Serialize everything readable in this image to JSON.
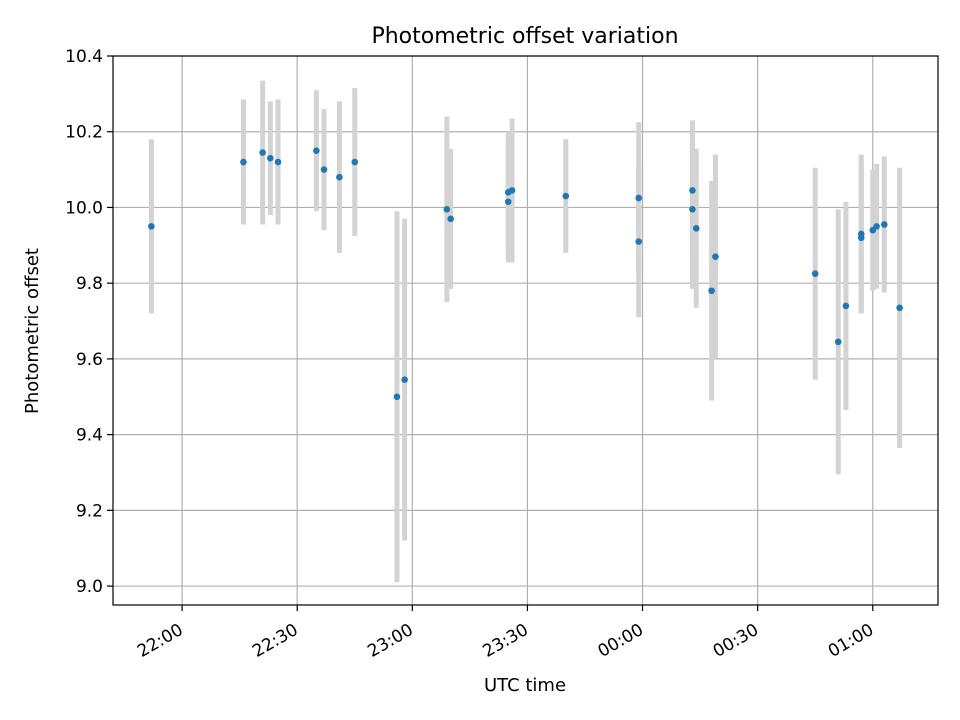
{
  "chart_data": {
    "type": "scatter",
    "title": "Photometric offset variation",
    "xlabel": "UTC time",
    "ylabel": "Photometric offset",
    "x_unit": "time",
    "xlim": [
      "21:42",
      "01:17"
    ],
    "ylim": [
      8.95,
      10.4
    ],
    "x_ticks": [
      "22:00",
      "22:30",
      "23:00",
      "23:30",
      "00:00",
      "00:30",
      "01:00"
    ],
    "y_ticks": [
      9.0,
      9.2,
      9.4,
      9.6,
      9.8,
      10.0,
      10.2,
      10.4
    ],
    "y_tick_labels": [
      "9.0",
      "9.2",
      "9.4",
      "9.6",
      "9.8",
      "10.0",
      "10.2",
      "10.4"
    ],
    "grid": true,
    "colors": {
      "point": "#1f77b4",
      "errorbar": "#d3d3d3",
      "grid": "#b0b0b0"
    },
    "series": [
      {
        "points": [
          {
            "x": "21:52",
            "y": 9.95,
            "yerr": 0.23
          },
          {
            "x": "22:16",
            "y": 10.12,
            "yerr": 0.165
          },
          {
            "x": "22:21",
            "y": 10.145,
            "yerr": 0.19
          },
          {
            "x": "22:23",
            "y": 10.13,
            "yerr": 0.15
          },
          {
            "x": "22:25",
            "y": 10.12,
            "yerr": 0.165
          },
          {
            "x": "22:35",
            "y": 10.15,
            "yerr": 0.16
          },
          {
            "x": "22:37",
            "y": 10.1,
            "yerr": 0.16
          },
          {
            "x": "22:41",
            "y": 10.08,
            "yerr": 0.2
          },
          {
            "x": "22:45",
            "y": 10.12,
            "yerr": 0.195
          },
          {
            "x": "22:56",
            "y": 9.5,
            "yerr": 0.49
          },
          {
            "x": "22:58",
            "y": 9.545,
            "yerr": 0.425
          },
          {
            "x": "23:09",
            "y": 9.995,
            "yerr": 0.245
          },
          {
            "x": "23:10",
            "y": 9.97,
            "yerr": 0.185
          },
          {
            "x": "23:25",
            "y": 10.04,
            "yerr": 0.16
          },
          {
            "x": "23:25",
            "y": 10.015,
            "yerr": 0.16
          },
          {
            "x": "23:26",
            "y": 10.045,
            "yerr": 0.19
          },
          {
            "x": "23:40",
            "y": 10.03,
            "yerr": 0.15
          },
          {
            "x": "23:59",
            "y": 10.025,
            "yerr": 0.2
          },
          {
            "x": "23:59",
            "y": 9.91,
            "yerr": 0.2
          },
          {
            "x": "00:13",
            "y": 10.045,
            "yerr": 0.185
          },
          {
            "x": "00:13",
            "y": 9.995,
            "yerr": 0.21
          },
          {
            "x": "00:14",
            "y": 9.945,
            "yerr": 0.21
          },
          {
            "x": "00:18",
            "y": 9.78,
            "yerr": 0.29
          },
          {
            "x": "00:19",
            "y": 9.87,
            "yerr": 0.27
          },
          {
            "x": "00:45",
            "y": 9.825,
            "yerr": 0.28
          },
          {
            "x": "00:51",
            "y": 9.645,
            "yerr": 0.35
          },
          {
            "x": "00:53",
            "y": 9.74,
            "yerr": 0.275
          },
          {
            "x": "00:57",
            "y": 9.92,
            "yerr": 0.2
          },
          {
            "x": "00:57",
            "y": 9.93,
            "yerr": 0.21
          },
          {
            "x": "01:00",
            "y": 9.94,
            "yerr": 0.16
          },
          {
            "x": "01:01",
            "y": 9.95,
            "yerr": 0.165
          },
          {
            "x": "01:03",
            "y": 9.955,
            "yerr": 0.18
          },
          {
            "x": "01:07",
            "y": 9.735,
            "yerr": 0.37
          }
        ]
      }
    ]
  }
}
